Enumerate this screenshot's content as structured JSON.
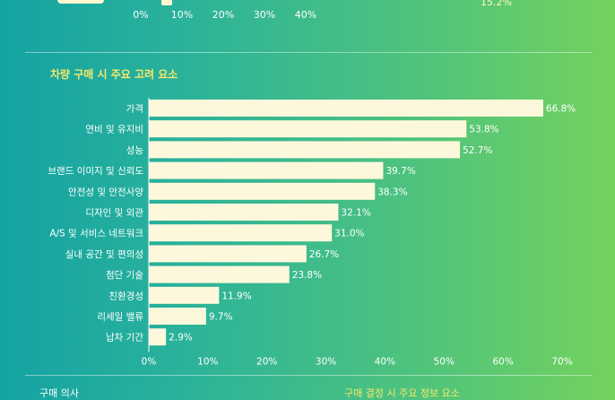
{
  "top_axis": {
    "ticks": [
      "0%",
      "10%",
      "20%",
      "30%",
      "40%"
    ],
    "right_value": "15.2%"
  },
  "section": {
    "title": "차량 구매 시 주요 고려 요소"
  },
  "chart_data": {
    "type": "bar",
    "orientation": "horizontal",
    "title": "차량 구매 시 주요 고려 요소",
    "categories": [
      "가격",
      "연비 및 유지비",
      "성능",
      "브랜드 이미지 및 신뢰도",
      "안전성 및 안전사양",
      "디자인 및 외관",
      "A/S 및 서비스 네트워크",
      "실내 공간 및 편의성",
      "첨단 기술",
      "친환경성",
      "리세일 밸류",
      "납차 기간"
    ],
    "values": [
      66.8,
      53.8,
      52.7,
      39.7,
      38.3,
      32.1,
      31.0,
      26.7,
      23.8,
      11.9,
      9.7,
      2.9
    ],
    "value_labels": [
      "66.8%",
      "53.8%",
      "52.7%",
      "39.7%",
      "38.3%",
      "32.1%",
      "31.0%",
      "26.7%",
      "23.8%",
      "11.9%",
      "9.7%",
      "2.9%"
    ],
    "xlim": [
      0,
      70
    ],
    "x_ticks": [
      "0%",
      "10%",
      "20%",
      "30%",
      "40%",
      "50%",
      "60%",
      "70%"
    ],
    "bar_color": "#fdf8dc",
    "label_color": "#ffffff",
    "grid": false
  },
  "bottom": {
    "left_label": "구매 의사",
    "right_label": "구매 결정 시 주요 정보 요소"
  },
  "colors": {
    "accent": "#f6e86a",
    "bar": "#fdf8dc"
  }
}
